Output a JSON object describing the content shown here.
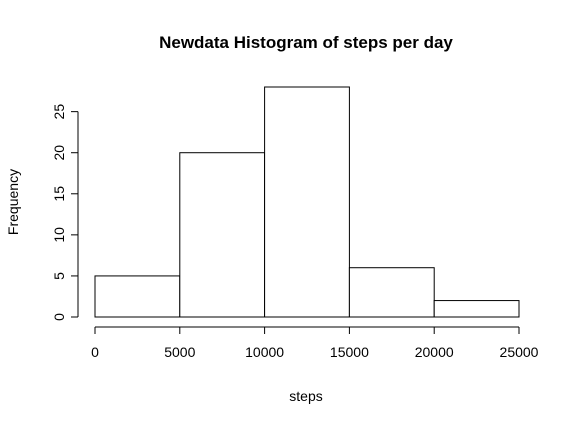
{
  "chart_data": {
    "type": "bar",
    "title": "Newdata Histogram of steps per day",
    "xlabel": "steps",
    "ylabel": "Frequency",
    "bins": [
      {
        "from": 0,
        "to": 5000,
        "count": 5
      },
      {
        "from": 5000,
        "to": 10000,
        "count": 20
      },
      {
        "from": 10000,
        "to": 15000,
        "count": 28
      },
      {
        "from": 15000,
        "to": 20000,
        "count": 6
      },
      {
        "from": 20000,
        "to": 25000,
        "count": 2
      }
    ],
    "x_ticks": [
      0,
      5000,
      10000,
      15000,
      20000,
      25000
    ],
    "y_ticks": [
      0,
      5,
      10,
      15,
      20,
      25
    ],
    "xlim": [
      0,
      25000
    ],
    "ylim": [
      0,
      28
    ],
    "grid": false,
    "bar_fill": "#ffffff",
    "bar_stroke": "#000000"
  }
}
